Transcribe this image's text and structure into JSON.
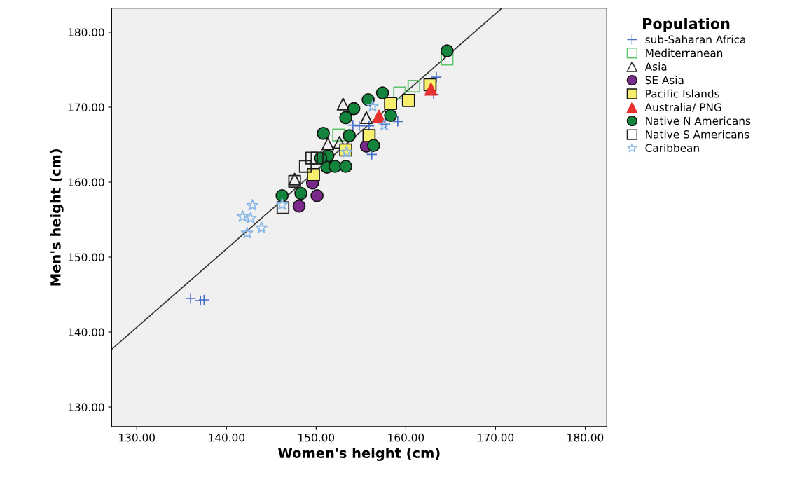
{
  "chart_data": {
    "type": "scatter",
    "xlabel": "Women's height (cm)",
    "ylabel": "Men's height (cm)",
    "legend_title": "Population",
    "legend": "right",
    "grid": false,
    "xlim": [
      127.2,
      182.4
    ],
    "ylim": [
      127.4,
      183.2
    ],
    "xticks": [
      {
        "value": 130,
        "label": "130.00"
      },
      {
        "value": 140,
        "label": "140.00"
      },
      {
        "value": 150,
        "label": "150.00"
      },
      {
        "value": 160,
        "label": "160.00"
      },
      {
        "value": 170,
        "label": "170.00"
      },
      {
        "value": 180,
        "label": "180.00"
      }
    ],
    "yticks": [
      {
        "value": 130,
        "label": "130.00"
      },
      {
        "value": 140,
        "label": "140.00"
      },
      {
        "value": 150,
        "label": "150.00"
      },
      {
        "value": 160,
        "label": "160.00"
      },
      {
        "value": 170,
        "label": "170.00"
      },
      {
        "value": 180,
        "label": "180.00"
      }
    ],
    "series": [
      {
        "name": "sub-Saharan Africa",
        "color": "#4a6fc7",
        "marker": "cross",
        "x": [
          136.0,
          137.1,
          137.5,
          154.1,
          154.8,
          155.9,
          157.7,
          159.1,
          156.2,
          163.4,
          163.1
        ],
        "values": [
          144.5,
          144.2,
          144.3,
          167.6,
          167.5,
          167.5,
          167.7,
          168.1,
          163.7,
          174.0,
          171.7
        ]
      },
      {
        "name": "Mediterranean",
        "color": "#5cc46a",
        "marker": "square",
        "x": [
          164.6,
          160.9,
          159.3,
          152.5
        ],
        "values": [
          176.4,
          172.8,
          171.9,
          166.3
        ]
      },
      {
        "name": "Asia",
        "color": "#222222",
        "marker": "triangle",
        "x": [
          153.0,
          155.6,
          151.3,
          152.6,
          147.6
        ],
        "values": [
          170.4,
          168.6,
          165.1,
          165.3,
          160.4
        ]
      },
      {
        "name": "SE Asia",
        "color": "#7b2a8c",
        "marker": "circle",
        "x": [
          148.1,
          150.1,
          149.6,
          155.6
        ],
        "values": [
          156.8,
          158.2,
          159.9,
          164.8
        ]
      },
      {
        "name": "Pacific Islands",
        "color": "#f7ee6e",
        "marker": "square",
        "x": [
          162.7,
          160.3,
          158.3,
          155.9,
          149.7,
          153.3
        ],
        "values": [
          173.0,
          170.9,
          170.5,
          166.2,
          161.0,
          164.3
        ]
      },
      {
        "name": "Australia/ PNG",
        "color": "#e8302e",
        "marker": "triangle",
        "x": [
          162.8,
          157.0
        ],
        "values": [
          172.4,
          168.8
        ]
      },
      {
        "name": "Native N Americans",
        "color": "#13843b",
        "marker": "circle",
        "x": [
          164.6,
          157.4,
          155.8,
          154.2,
          153.3,
          158.3,
          150.8,
          153.7,
          156.4,
          151.3,
          151.2,
          152.1,
          153.3,
          148.3,
          146.2,
          150.5
        ],
        "values": [
          177.5,
          171.9,
          171.0,
          169.8,
          168.6,
          168.9,
          166.5,
          166.2,
          164.9,
          163.5,
          162.0,
          162.1,
          162.1,
          158.5,
          158.2,
          163.2
        ]
      },
      {
        "name": "Native S Americans",
        "color": "#222222",
        "marker": "square",
        "x": [
          146.3,
          149.5,
          148.8,
          150.1,
          147.6
        ],
        "values": [
          156.6,
          163.2,
          162.1,
          163.2,
          160.1
        ]
      },
      {
        "name": "Caribbean",
        "color": "#8ab8e6",
        "marker": "star",
        "x": [
          142.9,
          141.8,
          142.7,
          143.9,
          142.3,
          146.2,
          156.3,
          153.4,
          157.6
        ],
        "values": [
          156.9,
          155.4,
          155.2,
          153.9,
          153.2,
          157.0,
          170.1,
          164.0,
          167.6
        ]
      },
      {
        "type": "line",
        "color": "#333333",
        "x": [
          127.2,
          170.7
        ],
        "values": [
          137.7,
          183.2
        ]
      }
    ]
  }
}
